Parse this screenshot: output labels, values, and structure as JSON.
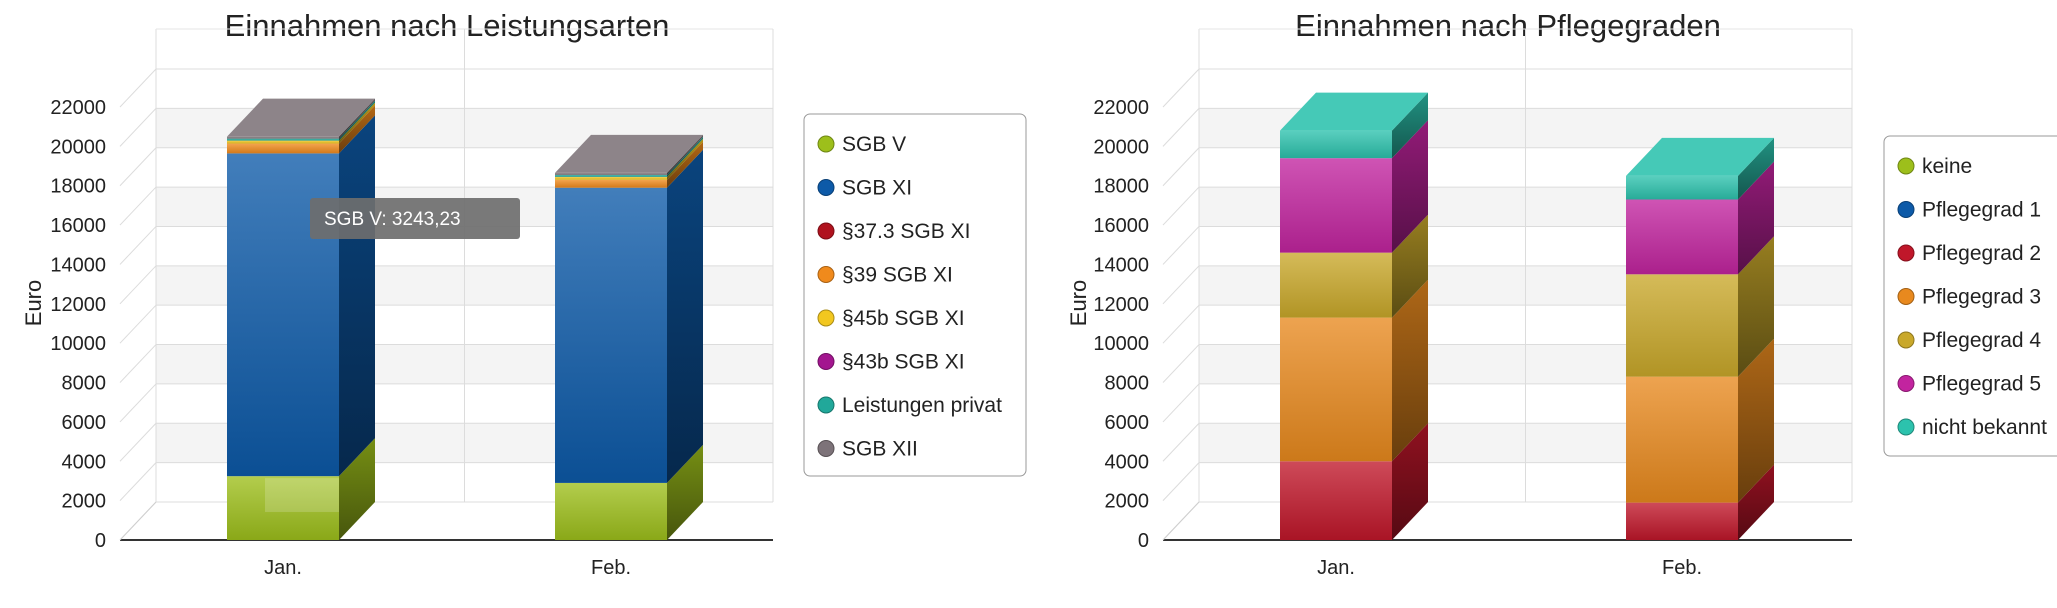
{
  "colors": {
    "SGB V": "#9dbf1b",
    "SGB XI": "#0d5aa8",
    "§37.3 SGB XI": "#b0121e",
    "§39 SGB XI": "#f08a1c",
    "§45b SGB XI": "#f2c71f",
    "§43b SGB XI": "#a3168f",
    "Leistungen privat": "#21a89a",
    "SGB XII": "#7d7379",
    "keine": "#9dbf1b",
    "Pflegegrad 1": "#0d5aa8",
    "Pflegegrad 2": "#c0172a",
    "Pflegegrad 3": "#e8891e",
    "Pflegegrad 4": "#c9a82a",
    "Pflegegrad 5": "#c2249f",
    "nicht bekannt": "#2cc2ad"
  },
  "chart_data": [
    {
      "type": "bar",
      "stacked": true,
      "style": "3d",
      "title": "Einnahmen nach Leistungsarten",
      "xlabel": "",
      "ylabel": "Euro",
      "ylim": [
        0,
        22000
      ],
      "yticks": [
        0,
        2000,
        4000,
        6000,
        8000,
        10000,
        12000,
        14000,
        16000,
        18000,
        20000,
        22000
      ],
      "grid": true,
      "legend_position": "right",
      "categories": [
        "Jan.",
        "Feb."
      ],
      "series": [
        {
          "name": "SGB V",
          "values": [
            3243.23,
            2900
          ]
        },
        {
          "name": "SGB XI",
          "values": [
            16400,
            15000
          ]
        },
        {
          "name": "§37.3 SGB XI",
          "values": [
            0,
            0
          ]
        },
        {
          "name": "§39 SGB XI",
          "values": [
            500,
            400
          ]
        },
        {
          "name": "§45b SGB XI",
          "values": [
            150,
            150
          ]
        },
        {
          "name": "§43b SGB XI",
          "values": [
            0,
            0
          ]
        },
        {
          "name": "Leistungen privat",
          "values": [
            100,
            100
          ]
        },
        {
          "name": "SGB XII",
          "values": [
            100,
            100
          ]
        }
      ],
      "tooltip": {
        "text": "SGB V: 3243,23"
      }
    },
    {
      "type": "bar",
      "stacked": true,
      "style": "3d",
      "title": "Einnahmen nach Pflegegraden",
      "xlabel": "",
      "ylabel": "Euro",
      "ylim": [
        0,
        22000
      ],
      "yticks": [
        0,
        2000,
        4000,
        6000,
        8000,
        10000,
        12000,
        14000,
        16000,
        18000,
        20000,
        22000
      ],
      "grid": true,
      "legend_position": "right",
      "categories": [
        "Jan.",
        "Feb."
      ],
      "series": [
        {
          "name": "keine",
          "values": [
            0,
            0
          ]
        },
        {
          "name": "Pflegegrad 1",
          "values": [
            0,
            0
          ]
        },
        {
          "name": "Pflegegrad 2",
          "values": [
            4000,
            1900
          ]
        },
        {
          "name": "Pflegegrad 3",
          "values": [
            7300,
            6400
          ]
        },
        {
          "name": "Pflegegrad 4",
          "values": [
            3300,
            5200
          ]
        },
        {
          "name": "Pflegegrad 5",
          "values": [
            4800,
            3800
          ]
        },
        {
          "name": "nicht bekannt",
          "values": [
            1400,
            1200
          ]
        }
      ]
    }
  ]
}
